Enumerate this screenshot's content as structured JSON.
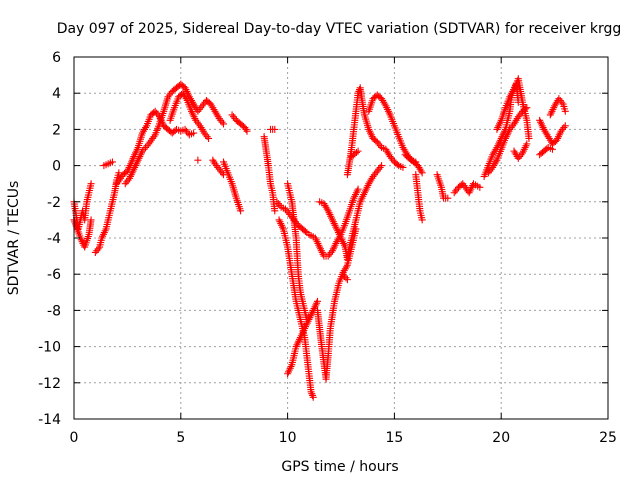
{
  "chart_data": {
    "type": "scatter",
    "title": "Day 097 of 2025, Sidereal Day-to-day VTEC variation (SDTVAR) for receiver krgg",
    "xlabel": "GPS time / hours",
    "ylabel": "SDTVAR / TECUs",
    "xlim": [
      0,
      25
    ],
    "ylim": [
      -14,
      6
    ],
    "xticks": [
      0,
      5,
      10,
      15,
      20,
      25
    ],
    "yticks": [
      -14,
      -12,
      -10,
      -8,
      -6,
      -4,
      -2,
      0,
      2,
      4,
      6
    ],
    "grid": true,
    "marker": "+",
    "color": "#ff0000",
    "series": [
      {
        "name": "SDTVAR",
        "segments": [
          [
            [
              0.0,
              -2.0
            ],
            [
              0.2,
              -3.5
            ],
            [
              0.4,
              -2.5
            ],
            [
              0.5,
              -3.0
            ],
            [
              0.6,
              -2.0
            ],
            [
              0.7,
              -1.5
            ],
            [
              0.8,
              -1.0
            ]
          ],
          [
            [
              0.0,
              -3.0
            ],
            [
              0.3,
              -4.0
            ],
            [
              0.5,
              -4.5
            ],
            [
              0.7,
              -3.8
            ],
            [
              0.8,
              -3.0
            ]
          ],
          [
            [
              1.0,
              -4.8
            ],
            [
              1.2,
              -4.5
            ],
            [
              1.3,
              -4.0
            ],
            [
              1.5,
              -3.5
            ],
            [
              1.7,
              -2.5
            ],
            [
              1.9,
              -1.5
            ],
            [
              2.0,
              -0.8
            ],
            [
              2.1,
              -0.4
            ]
          ],
          [
            [
              1.4,
              0.0
            ],
            [
              1.6,
              0.1
            ],
            [
              1.8,
              0.2
            ]
          ],
          [
            [
              2.0,
              -1.0
            ],
            [
              2.3,
              -0.5
            ],
            [
              2.5,
              -0.3
            ],
            [
              2.7,
              0.2
            ],
            [
              2.8,
              0.5
            ],
            [
              3.0,
              1.0
            ],
            [
              3.2,
              1.8
            ],
            [
              3.4,
              2.2
            ],
            [
              3.6,
              2.8
            ],
            [
              3.8,
              3.0
            ],
            [
              4.0,
              2.7
            ],
            [
              4.2,
              2.2
            ],
            [
              4.4,
              2.0
            ],
            [
              4.6,
              1.8
            ],
            [
              4.8,
              2.0
            ],
            [
              5.0,
              1.9
            ],
            [
              5.2,
              2.0
            ],
            [
              5.4,
              1.7
            ],
            [
              5.6,
              1.8
            ]
          ],
          [
            [
              2.4,
              -1.0
            ],
            [
              2.6,
              -0.7
            ],
            [
              2.8,
              -0.2
            ],
            [
              3.0,
              0.3
            ],
            [
              3.2,
              0.8
            ],
            [
              3.5,
              1.2
            ],
            [
              3.8,
              1.7
            ],
            [
              4.0,
              2.3
            ],
            [
              4.2,
              3.0
            ],
            [
              4.4,
              3.8
            ],
            [
              4.6,
              4.1
            ],
            [
              4.8,
              4.3
            ],
            [
              5.0,
              4.5
            ],
            [
              5.2,
              4.3
            ],
            [
              5.4,
              3.8
            ],
            [
              5.6,
              3.4
            ],
            [
              5.8,
              3.0
            ],
            [
              6.0,
              3.3
            ],
            [
              6.2,
              3.6
            ],
            [
              6.4,
              3.4
            ],
            [
              6.6,
              3.0
            ],
            [
              6.8,
              2.6
            ],
            [
              7.0,
              2.3
            ]
          ],
          [
            [
              4.5,
              2.5
            ],
            [
              4.7,
              3.2
            ],
            [
              4.9,
              3.8
            ],
            [
              5.1,
              4.0
            ],
            [
              5.3,
              3.6
            ],
            [
              5.5,
              3.0
            ],
            [
              5.7,
              2.5
            ],
            [
              5.9,
              2.2
            ],
            [
              6.1,
              1.8
            ],
            [
              6.3,
              1.5
            ]
          ],
          [
            [
              5.8,
              0.3
            ]
          ],
          [
            [
              6.5,
              0.3
            ],
            [
              6.6,
              0.1
            ],
            [
              6.8,
              -0.2
            ],
            [
              7.0,
              -0.5
            ]
          ],
          [
            [
              7.0,
              0.2
            ],
            [
              7.2,
              -0.4
            ],
            [
              7.4,
              -1.0
            ],
            [
              7.6,
              -1.8
            ],
            [
              7.8,
              -2.5
            ]
          ],
          [
            [
              7.4,
              2.8
            ],
            [
              7.6,
              2.5
            ],
            [
              7.8,
              2.3
            ],
            [
              8.0,
              2.1
            ],
            [
              8.1,
              1.9
            ]
          ],
          [
            [
              8.9,
              1.6
            ],
            [
              9.0,
              0.8
            ],
            [
              9.1,
              0.0
            ],
            [
              9.2,
              -1.0
            ],
            [
              9.3,
              -1.5
            ],
            [
              9.4,
              -2.5
            ]
          ],
          [
            [
              9.2,
              2.0
            ],
            [
              9.4,
              2.0
            ]
          ],
          [
            [
              9.5,
              -2.0
            ],
            [
              9.7,
              -2.3
            ],
            [
              9.9,
              -2.4
            ],
            [
              10.1,
              -2.7
            ],
            [
              10.3,
              -3.0
            ],
            [
              10.5,
              -3.3
            ],
            [
              10.7,
              -3.5
            ],
            [
              10.9,
              -3.7
            ]
          ],
          [
            [
              9.6,
              -3.0
            ],
            [
              9.8,
              -3.5
            ],
            [
              10.0,
              -4.5
            ],
            [
              10.2,
              -6.0
            ],
            [
              10.4,
              -7.5
            ],
            [
              10.6,
              -8.5
            ],
            [
              10.8,
              -9.5
            ],
            [
              10.9,
              -10.5
            ],
            [
              11.0,
              -11.5
            ],
            [
              11.1,
              -12.5
            ],
            [
              11.2,
              -12.8
            ]
          ],
          [
            [
              10.0,
              -1.0
            ],
            [
              10.2,
              -2.0
            ],
            [
              10.4,
              -4.0
            ],
            [
              10.5,
              -6.0
            ],
            [
              10.6,
              -7.0
            ],
            [
              10.8,
              -8.0
            ],
            [
              10.9,
              -8.5
            ]
          ],
          [
            [
              10.0,
              -11.5
            ],
            [
              10.2,
              -11.0
            ],
            [
              10.4,
              -10.0
            ],
            [
              10.6,
              -9.5
            ],
            [
              10.8,
              -9.0
            ],
            [
              11.0,
              -8.5
            ],
            [
              11.2,
              -8.0
            ],
            [
              11.4,
              -7.5
            ]
          ],
          [
            [
              11.4,
              -8.0
            ],
            [
              11.6,
              -10.0
            ],
            [
              11.8,
              -11.8
            ],
            [
              11.9,
              -10.5
            ],
            [
              12.0,
              -9.0
            ],
            [
              12.2,
              -7.5
            ],
            [
              12.4,
              -6.5
            ],
            [
              12.6,
              -5.9
            ],
            [
              12.8,
              -5.5
            ],
            [
              13.0,
              -4.5
            ],
            [
              13.2,
              -3.5
            ]
          ],
          [
            [
              11.0,
              -3.8
            ],
            [
              11.3,
              -4.0
            ],
            [
              11.5,
              -4.5
            ],
            [
              11.7,
              -5.0
            ],
            [
              11.9,
              -5.0
            ],
            [
              12.1,
              -4.7
            ],
            [
              12.3,
              -4.2
            ],
            [
              12.5,
              -3.8
            ],
            [
              12.7,
              -3.2
            ],
            [
              12.9,
              -2.5
            ],
            [
              13.1,
              -1.8
            ],
            [
              13.3,
              -1.3
            ]
          ],
          [
            [
              11.5,
              -2.0
            ],
            [
              11.7,
              -2.1
            ],
            [
              11.9,
              -2.5
            ],
            [
              12.1,
              -3.0
            ],
            [
              12.3,
              -3.5
            ],
            [
              12.5,
              -4.0
            ],
            [
              12.7,
              -4.5
            ],
            [
              12.8,
              -5.2
            ]
          ],
          [
            [
              12.8,
              -5.0
            ],
            [
              13.0,
              -4.0
            ],
            [
              13.2,
              -3.0
            ],
            [
              13.4,
              -2.0
            ],
            [
              13.6,
              -1.5
            ],
            [
              13.8,
              -1.0
            ],
            [
              14.0,
              -0.6
            ],
            [
              14.2,
              -0.3
            ],
            [
              14.4,
              0.0
            ]
          ],
          [
            [
              12.6,
              -6.0
            ],
            [
              12.8,
              -6.3
            ]
          ],
          [
            [
              12.8,
              -0.5
            ],
            [
              12.9,
              0.2
            ],
            [
              13.0,
              1.0
            ],
            [
              13.1,
              2.0
            ],
            [
              13.2,
              3.0
            ],
            [
              13.3,
              4.0
            ],
            [
              13.4,
              4.3
            ],
            [
              13.5,
              3.5
            ],
            [
              13.6,
              2.8
            ],
            [
              13.8,
              2.0
            ],
            [
              14.0,
              1.5
            ],
            [
              14.2,
              1.3
            ],
            [
              14.4,
              1.0
            ],
            [
              14.6,
              0.9
            ],
            [
              14.8,
              0.5
            ],
            [
              15.0,
              0.2
            ],
            [
              15.2,
              0.0
            ],
            [
              15.4,
              -0.1
            ]
          ],
          [
            [
              13.0,
              0.5
            ],
            [
              13.3,
              0.8
            ]
          ],
          [
            [
              13.8,
              3.0
            ],
            [
              14.0,
              3.7
            ],
            [
              14.2,
              3.9
            ],
            [
              14.4,
              3.7
            ],
            [
              14.6,
              3.3
            ],
            [
              14.8,
              2.8
            ],
            [
              15.0,
              2.2
            ],
            [
              15.2,
              1.6
            ],
            [
              15.4,
              1.0
            ],
            [
              15.6,
              0.6
            ],
            [
              15.8,
              0.3
            ],
            [
              16.0,
              0.2
            ]
          ],
          [
            [
              15.5,
              0.6
            ],
            [
              15.7,
              0.4
            ],
            [
              15.9,
              0.2
            ],
            [
              16.1,
              0.0
            ],
            [
              16.3,
              -0.4
            ]
          ],
          [
            [
              16.0,
              -0.5
            ],
            [
              16.1,
              -1.5
            ],
            [
              16.2,
              -2.5
            ],
            [
              16.3,
              -3.0
            ]
          ],
          [
            [
              17.0,
              -0.5
            ],
            [
              17.2,
              -1.2
            ],
            [
              17.3,
              -1.8
            ],
            [
              17.5,
              -1.8
            ]
          ],
          [
            [
              17.8,
              -1.5
            ],
            [
              18.0,
              -1.2
            ],
            [
              18.2,
              -1.0
            ],
            [
              18.5,
              -1.5
            ],
            [
              18.7,
              -1.0
            ],
            [
              19.0,
              -1.2
            ]
          ],
          [
            [
              19.2,
              -0.6
            ],
            [
              19.4,
              0.0
            ],
            [
              19.6,
              0.6
            ],
            [
              19.8,
              1.0
            ],
            [
              20.0,
              1.5
            ],
            [
              20.2,
              2.0
            ],
            [
              20.4,
              3.0
            ],
            [
              20.5,
              4.0
            ],
            [
              20.7,
              4.5
            ],
            [
              20.8,
              3.5
            ]
          ],
          [
            [
              19.4,
              -0.4
            ],
            [
              19.6,
              -0.1
            ],
            [
              19.8,
              0.3
            ],
            [
              20.0,
              0.9
            ],
            [
              20.2,
              1.5
            ],
            [
              20.4,
              2.0
            ],
            [
              20.6,
              2.3
            ],
            [
              20.8,
              2.7
            ],
            [
              21.0,
              3.0
            ],
            [
              21.2,
              3.2
            ]
          ],
          [
            [
              19.8,
              2.0
            ],
            [
              20.0,
              2.5
            ],
            [
              20.2,
              3.2
            ],
            [
              20.4,
              3.8
            ],
            [
              20.6,
              4.2
            ],
            [
              20.8,
              4.8
            ],
            [
              21.0,
              3.5
            ],
            [
              21.2,
              2.5
            ],
            [
              21.3,
              1.5
            ]
          ],
          [
            [
              20.6,
              0.8
            ],
            [
              20.8,
              0.4
            ],
            [
              21.0,
              0.7
            ],
            [
              21.2,
              1.2
            ]
          ],
          [
            [
              21.8,
              2.5
            ],
            [
              22.0,
              2.0
            ],
            [
              22.2,
              1.6
            ],
            [
              22.4,
              1.2
            ],
            [
              22.6,
              1.4
            ],
            [
              22.8,
              1.9
            ],
            [
              23.0,
              2.2
            ]
          ],
          [
            [
              21.8,
              0.6
            ],
            [
              22.0,
              0.8
            ],
            [
              22.2,
              1.0
            ],
            [
              22.4,
              0.9
            ]
          ],
          [
            [
              22.3,
              2.8
            ],
            [
              22.5,
              3.3
            ],
            [
              22.7,
              3.7
            ],
            [
              22.9,
              3.4
            ],
            [
              23.0,
              3.0
            ]
          ]
        ]
      }
    ]
  }
}
